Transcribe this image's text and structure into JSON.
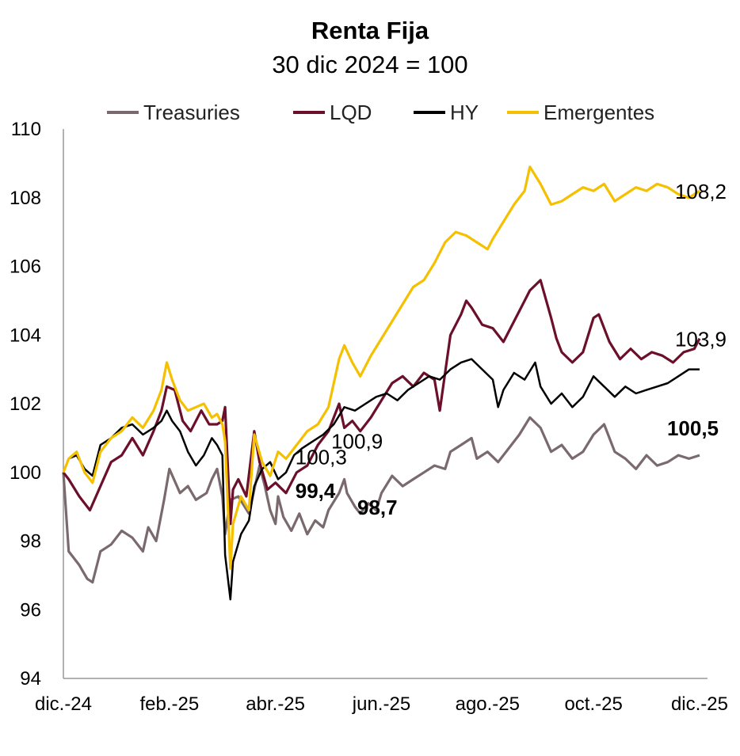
{
  "chart_data": {
    "type": "line",
    "title": "Renta Fija",
    "subtitle": "30 dic 2024 = 100",
    "xlabel": "",
    "ylabel": "",
    "ylim": [
      94,
      110
    ],
    "y_ticks": [
      "94",
      "96",
      "98",
      "100",
      "102",
      "104",
      "106",
      "108",
      "110"
    ],
    "x_ticks": [
      "dic.-24",
      "feb.-25",
      "abr.-25",
      "jun.-25",
      "ago.-25",
      "oct.-25",
      "dic.-25"
    ],
    "x_tick_months": [
      0,
      2,
      4,
      6,
      8,
      10,
      12
    ],
    "legend_position": "top",
    "grid": false,
    "series": [
      {
        "name": "Treasuries",
        "color": "#7a6a6e",
        "points": [
          [
            0,
            100
          ],
          [
            0.1,
            97.7
          ],
          [
            0.3,
            97.3
          ],
          [
            0.45,
            96.9
          ],
          [
            0.55,
            96.8
          ],
          [
            0.7,
            97.7
          ],
          [
            0.9,
            97.9
          ],
          [
            1.1,
            98.3
          ],
          [
            1.3,
            98.1
          ],
          [
            1.5,
            97.7
          ],
          [
            1.6,
            98.4
          ],
          [
            1.75,
            98.0
          ],
          [
            1.9,
            99.2
          ],
          [
            2.0,
            100.1
          ],
          [
            2.2,
            99.4
          ],
          [
            2.35,
            99.6
          ],
          [
            2.5,
            99.2
          ],
          [
            2.7,
            99.4
          ],
          [
            2.8,
            99.8
          ],
          [
            2.9,
            100.1
          ],
          [
            3.0,
            99.3
          ],
          [
            3.05,
            98.2
          ],
          [
            3.15,
            99.2
          ],
          [
            3.3,
            99.3
          ],
          [
            3.5,
            98.8
          ],
          [
            3.7,
            100.2
          ],
          [
            3.8,
            99.6
          ],
          [
            3.9,
            98.9
          ],
          [
            4.0,
            98.5
          ],
          [
            4.05,
            99.3
          ],
          [
            4.15,
            98.7
          ],
          [
            4.3,
            98.3
          ],
          [
            4.45,
            98.8
          ],
          [
            4.6,
            98.2
          ],
          [
            4.75,
            98.6
          ],
          [
            4.9,
            98.4
          ],
          [
            5.0,
            98.9
          ],
          [
            5.2,
            99.4
          ],
          [
            5.3,
            99.8
          ],
          [
            5.35,
            99.4
          ],
          [
            5.5,
            99.0
          ],
          [
            5.6,
            98.8
          ],
          [
            5.75,
            99.1
          ],
          [
            5.9,
            98.9
          ],
          [
            6.0,
            99.4
          ],
          [
            6.2,
            99.9
          ],
          [
            6.4,
            99.6
          ],
          [
            6.6,
            99.8
          ],
          [
            6.8,
            100.0
          ],
          [
            7.0,
            100.2
          ],
          [
            7.2,
            100.1
          ],
          [
            7.3,
            100.6
          ],
          [
            7.5,
            100.8
          ],
          [
            7.7,
            101.0
          ],
          [
            7.8,
            100.4
          ],
          [
            8.0,
            100.6
          ],
          [
            8.2,
            100.3
          ],
          [
            8.4,
            100.7
          ],
          [
            8.6,
            101.1
          ],
          [
            8.8,
            101.6
          ],
          [
            9.0,
            101.3
          ],
          [
            9.2,
            100.6
          ],
          [
            9.4,
            100.8
          ],
          [
            9.6,
            100.4
          ],
          [
            9.8,
            100.6
          ],
          [
            10.0,
            101.1
          ],
          [
            10.2,
            101.4
          ],
          [
            10.4,
            100.6
          ],
          [
            10.6,
            100.4
          ],
          [
            10.8,
            100.1
          ],
          [
            11.0,
            100.5
          ],
          [
            11.2,
            100.2
          ],
          [
            11.4,
            100.3
          ],
          [
            11.6,
            100.5
          ],
          [
            11.8,
            100.4
          ],
          [
            12.0,
            100.5
          ]
        ]
      },
      {
        "name": "LQD",
        "color": "#6b0f2a",
        "points": [
          [
            0,
            100
          ],
          [
            0.1,
            99.8
          ],
          [
            0.3,
            99.3
          ],
          [
            0.5,
            98.9
          ],
          [
            0.7,
            99.6
          ],
          [
            0.9,
            100.3
          ],
          [
            1.1,
            100.5
          ],
          [
            1.3,
            101.0
          ],
          [
            1.5,
            100.5
          ],
          [
            1.7,
            101.2
          ],
          [
            1.85,
            101.8
          ],
          [
            1.95,
            102.5
          ],
          [
            2.1,
            102.4
          ],
          [
            2.25,
            101.5
          ],
          [
            2.4,
            101.2
          ],
          [
            2.6,
            101.8
          ],
          [
            2.75,
            101.4
          ],
          [
            2.9,
            101.4
          ],
          [
            3.0,
            101.5
          ],
          [
            3.05,
            101.9
          ],
          [
            3.15,
            98.5
          ],
          [
            3.2,
            99.5
          ],
          [
            3.3,
            99.8
          ],
          [
            3.45,
            99.3
          ],
          [
            3.6,
            101.2
          ],
          [
            3.7,
            100.3
          ],
          [
            3.85,
            99.5
          ],
          [
            4.0,
            99.7
          ],
          [
            4.2,
            99.4
          ],
          [
            4.4,
            100.0
          ],
          [
            4.6,
            100.2
          ],
          [
            4.8,
            100.8
          ],
          [
            5.0,
            101.2
          ],
          [
            5.2,
            102.0
          ],
          [
            5.3,
            101.3
          ],
          [
            5.45,
            101.5
          ],
          [
            5.6,
            101.2
          ],
          [
            5.8,
            101.6
          ],
          [
            6.0,
            102.1
          ],
          [
            6.2,
            102.6
          ],
          [
            6.4,
            102.8
          ],
          [
            6.6,
            102.5
          ],
          [
            6.8,
            102.9
          ],
          [
            7.0,
            102.7
          ],
          [
            7.1,
            101.8
          ],
          [
            7.3,
            104.0
          ],
          [
            7.5,
            104.6
          ],
          [
            7.6,
            105.0
          ],
          [
            7.7,
            104.8
          ],
          [
            7.9,
            104.3
          ],
          [
            8.1,
            104.2
          ],
          [
            8.3,
            103.8
          ],
          [
            8.5,
            104.4
          ],
          [
            8.6,
            104.7
          ],
          [
            8.8,
            105.3
          ],
          [
            9.0,
            105.6
          ],
          [
            9.2,
            104.5
          ],
          [
            9.3,
            103.9
          ],
          [
            9.4,
            103.5
          ],
          [
            9.6,
            103.2
          ],
          [
            9.8,
            103.5
          ],
          [
            10.0,
            104.5
          ],
          [
            10.1,
            104.6
          ],
          [
            10.3,
            103.8
          ],
          [
            10.5,
            103.3
          ],
          [
            10.7,
            103.6
          ],
          [
            10.9,
            103.3
          ],
          [
            11.1,
            103.5
          ],
          [
            11.3,
            103.4
          ],
          [
            11.5,
            103.2
          ],
          [
            11.7,
            103.5
          ],
          [
            11.9,
            103.6
          ],
          [
            12.0,
            103.9
          ]
        ]
      },
      {
        "name": "HY",
        "color": "#000000",
        "points": [
          [
            0,
            100
          ],
          [
            0.1,
            100.4
          ],
          [
            0.25,
            100.5
          ],
          [
            0.4,
            100.1
          ],
          [
            0.55,
            99.9
          ],
          [
            0.7,
            100.8
          ],
          [
            0.9,
            101.0
          ],
          [
            1.1,
            101.3
          ],
          [
            1.3,
            101.4
          ],
          [
            1.5,
            101.1
          ],
          [
            1.7,
            101.3
          ],
          [
            1.85,
            101.5
          ],
          [
            1.95,
            101.8
          ],
          [
            2.05,
            101.5
          ],
          [
            2.2,
            101.2
          ],
          [
            2.35,
            100.6
          ],
          [
            2.5,
            100.2
          ],
          [
            2.65,
            100.5
          ],
          [
            2.8,
            101.0
          ],
          [
            2.9,
            100.8
          ],
          [
            3.0,
            100.5
          ],
          [
            3.05,
            97.6
          ],
          [
            3.15,
            96.3
          ],
          [
            3.2,
            97.4
          ],
          [
            3.35,
            98.2
          ],
          [
            3.5,
            98.6
          ],
          [
            3.6,
            99.6
          ],
          [
            3.75,
            100.1
          ],
          [
            3.9,
            100.3
          ],
          [
            4.05,
            99.8
          ],
          [
            4.2,
            100.0
          ],
          [
            4.35,
            100.5
          ],
          [
            4.5,
            100.7
          ],
          [
            4.7,
            100.9
          ],
          [
            4.9,
            101.1
          ],
          [
            5.1,
            101.4
          ],
          [
            5.3,
            101.9
          ],
          [
            5.5,
            101.8
          ],
          [
            5.7,
            102.0
          ],
          [
            5.9,
            102.2
          ],
          [
            6.1,
            102.3
          ],
          [
            6.3,
            102.1
          ],
          [
            6.5,
            102.4
          ],
          [
            6.7,
            102.6
          ],
          [
            6.9,
            102.8
          ],
          [
            7.1,
            102.7
          ],
          [
            7.3,
            103.0
          ],
          [
            7.5,
            103.2
          ],
          [
            7.7,
            103.3
          ],
          [
            7.9,
            103.0
          ],
          [
            8.1,
            102.7
          ],
          [
            8.2,
            101.9
          ],
          [
            8.3,
            102.4
          ],
          [
            8.5,
            102.9
          ],
          [
            8.7,
            102.7
          ],
          [
            8.9,
            103.2
          ],
          [
            9.0,
            102.5
          ],
          [
            9.2,
            102.0
          ],
          [
            9.4,
            102.3
          ],
          [
            9.6,
            101.9
          ],
          [
            9.8,
            102.2
          ],
          [
            10.0,
            102.8
          ],
          [
            10.2,
            102.5
          ],
          [
            10.4,
            102.2
          ],
          [
            10.6,
            102.5
          ],
          [
            10.8,
            102.3
          ],
          [
            11.0,
            102.4
          ],
          [
            11.2,
            102.5
          ],
          [
            11.4,
            102.6
          ],
          [
            11.6,
            102.8
          ],
          [
            11.8,
            103.0
          ],
          [
            12.0,
            103.0
          ]
        ]
      },
      {
        "name": "Emergentes",
        "color": "#f5c000",
        "points": [
          [
            0,
            100
          ],
          [
            0.1,
            100.4
          ],
          [
            0.25,
            100.6
          ],
          [
            0.4,
            100.0
          ],
          [
            0.55,
            99.7
          ],
          [
            0.7,
            100.6
          ],
          [
            0.9,
            101.0
          ],
          [
            1.1,
            101.2
          ],
          [
            1.3,
            101.6
          ],
          [
            1.5,
            101.3
          ],
          [
            1.7,
            101.8
          ],
          [
            1.85,
            102.4
          ],
          [
            1.95,
            103.2
          ],
          [
            2.05,
            102.7
          ],
          [
            2.2,
            102.1
          ],
          [
            2.35,
            101.8
          ],
          [
            2.5,
            101.9
          ],
          [
            2.65,
            102.0
          ],
          [
            2.8,
            101.6
          ],
          [
            2.9,
            101.7
          ],
          [
            3.0,
            101.4
          ],
          [
            3.05,
            100.9
          ],
          [
            3.15,
            97.2
          ],
          [
            3.2,
            98.5
          ],
          [
            3.35,
            99.3
          ],
          [
            3.5,
            98.9
          ],
          [
            3.6,
            101.1
          ],
          [
            3.75,
            100.3
          ],
          [
            3.9,
            99.9
          ],
          [
            4.05,
            100.6
          ],
          [
            4.2,
            100.4
          ],
          [
            4.4,
            100.8
          ],
          [
            4.6,
            101.2
          ],
          [
            4.8,
            101.4
          ],
          [
            5.0,
            101.9
          ],
          [
            5.2,
            103.3
          ],
          [
            5.3,
            103.7
          ],
          [
            5.45,
            103.2
          ],
          [
            5.6,
            102.8
          ],
          [
            5.8,
            103.4
          ],
          [
            6.0,
            103.9
          ],
          [
            6.2,
            104.4
          ],
          [
            6.4,
            104.9
          ],
          [
            6.6,
            105.4
          ],
          [
            6.8,
            105.6
          ],
          [
            7.0,
            106.1
          ],
          [
            7.2,
            106.7
          ],
          [
            7.4,
            107.0
          ],
          [
            7.6,
            106.9
          ],
          [
            7.8,
            106.7
          ],
          [
            8.0,
            106.5
          ],
          [
            8.1,
            106.8
          ],
          [
            8.3,
            107.3
          ],
          [
            8.5,
            107.8
          ],
          [
            8.7,
            108.2
          ],
          [
            8.8,
            108.9
          ],
          [
            9.0,
            108.4
          ],
          [
            9.2,
            107.8
          ],
          [
            9.4,
            107.9
          ],
          [
            9.6,
            108.1
          ],
          [
            9.8,
            108.3
          ],
          [
            10.0,
            108.2
          ],
          [
            10.2,
            108.4
          ],
          [
            10.4,
            107.9
          ],
          [
            10.6,
            108.1
          ],
          [
            10.8,
            108.3
          ],
          [
            11.0,
            108.2
          ],
          [
            11.2,
            108.4
          ],
          [
            11.4,
            108.3
          ],
          [
            11.6,
            108.1
          ],
          [
            11.8,
            108.0
          ],
          [
            12.0,
            108.2
          ]
        ]
      }
    ],
    "annotations": [
      {
        "text": "108,2",
        "x": 12.0,
        "y": 108.2,
        "bold": false,
        "anchor": "start",
        "dx": -31,
        "dy": 1
      },
      {
        "text": "103,9",
        "x": 12.0,
        "y": 103.9,
        "bold": false,
        "anchor": "start",
        "dx": -31,
        "dy": 1
      },
      {
        "text": "100,5",
        "x": 12.0,
        "y": 100.5,
        "bold": true,
        "anchor": "start",
        "dx": -41,
        "dy": -34
      },
      {
        "text": "100,9",
        "x": 5.8,
        "y": 100.9,
        "bold": false,
        "anchor": "start",
        "dx": -50,
        "dy": 0
      },
      {
        "text": "100,3",
        "x": 4.45,
        "y": 100.3,
        "bold": false,
        "anchor": "start",
        "dx": -5,
        "dy": -6
      },
      {
        "text": "99,4",
        "x": 4.45,
        "y": 99.4,
        "bold": true,
        "anchor": "start",
        "dx": -5,
        "dy": -3
      },
      {
        "text": "98,7",
        "x": 5.5,
        "y": 98.7,
        "bold": true,
        "anchor": "start",
        "dx": 3,
        "dy": -12
      }
    ]
  }
}
